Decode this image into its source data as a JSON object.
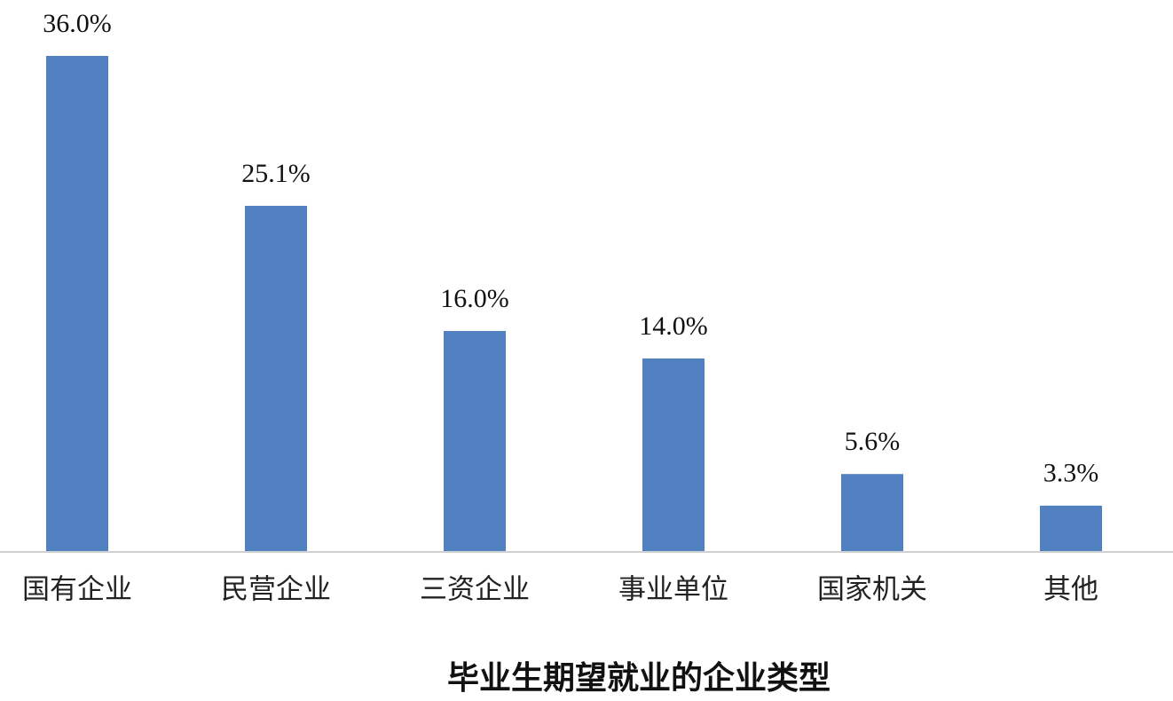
{
  "chart_data": {
    "type": "bar",
    "title": "毕业生期望就业的企业类型",
    "categories": [
      "国有企业",
      "民营企业",
      "三资企业",
      "事业单位",
      "国家机关",
      "其他"
    ],
    "values": [
      36.0,
      25.1,
      16.0,
      14.0,
      5.6,
      3.3
    ],
    "value_labels": [
      "36.0%",
      "25.1%",
      "16.0%",
      "14.0%",
      "5.6%",
      "3.3%"
    ],
    "color": "#5181c0"
  }
}
